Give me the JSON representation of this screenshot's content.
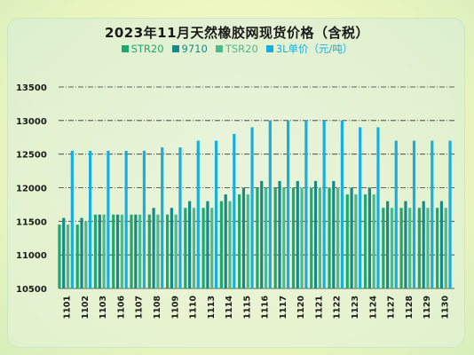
{
  "chart_data": {
    "type": "bar",
    "title": "2023年11月天然橡胶网现货价格（含税）",
    "categories": [
      "1101",
      "1102",
      "1103",
      "1106",
      "1107",
      "1108",
      "1109",
      "1110",
      "1113",
      "1114",
      "1115",
      "1116",
      "1117",
      "1120",
      "1121",
      "1122",
      "1123",
      "1124",
      "1127",
      "1128",
      "1129",
      "1130"
    ],
    "series": [
      {
        "name": "STR20",
        "color": "#1fa86d",
        "values": [
          11450,
          11450,
          11600,
          11600,
          11600,
          11600,
          11600,
          11700,
          11700,
          11800,
          11900,
          12000,
          12000,
          12000,
          12000,
          12000,
          11900,
          11900,
          11700,
          11700,
          11700,
          11700
        ]
      },
      {
        "name": "9710",
        "color": "#168a8a",
        "values": [
          11550,
          11550,
          11600,
          11600,
          11600,
          11700,
          11700,
          11800,
          11800,
          11900,
          12000,
          12100,
          12100,
          12100,
          12100,
          12100,
          12000,
          12000,
          11800,
          11800,
          11800,
          11800
        ]
      },
      {
        "name": "TSR20",
        "color": "#4fb88c",
        "values": [
          11450,
          11500,
          11600,
          11600,
          11600,
          11600,
          11600,
          11700,
          11700,
          11800,
          11900,
          12000,
          12000,
          12000,
          12000,
          12000,
          11900,
          11900,
          11700,
          11700,
          11700,
          11700
        ]
      },
      {
        "name": "3L单价（元/吨）",
        "color": "#19aee0",
        "values": [
          12550,
          12550,
          12550,
          12550,
          12550,
          12600,
          12600,
          12700,
          12700,
          12800,
          12900,
          13000,
          13000,
          13000,
          13000,
          13000,
          12900,
          12900,
          12700,
          12700,
          12700,
          12700
        ]
      }
    ],
    "ylim": [
      10500,
      13500
    ],
    "yticks": [
      10500,
      11000,
      11500,
      12000,
      12500,
      13000,
      13500
    ],
    "grid": true,
    "legend_position": "top"
  }
}
